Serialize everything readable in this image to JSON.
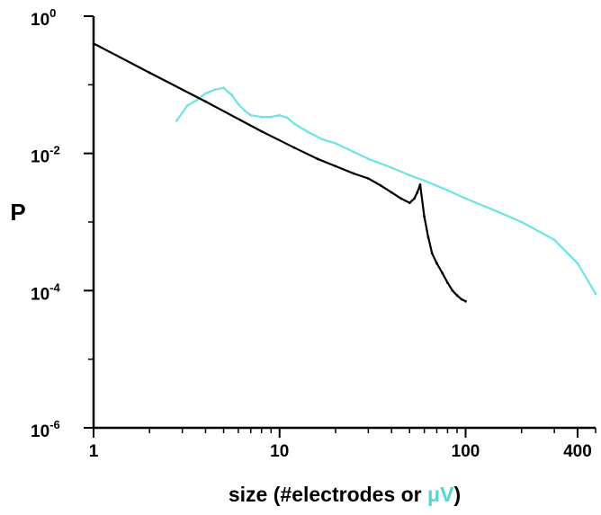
{
  "chart_data": {
    "type": "line",
    "title": "",
    "xlabel": {
      "prefix": "size (#electrodes or ",
      "mu": "μ",
      "unit": "V",
      "suffix": ")"
    },
    "ylabel": "P",
    "x_scale": "log",
    "y_scale": "log",
    "xlim": [
      1,
      500
    ],
    "ylim": [
      1e-06,
      1
    ],
    "x_ticks": [
      {
        "value": 1,
        "label": "1"
      },
      {
        "value": 10,
        "label": "10"
      },
      {
        "value": 100,
        "label": "100"
      },
      {
        "value": 400,
        "label": "400"
      }
    ],
    "y_ticks": [
      {
        "value": 1,
        "base": "10",
        "exp": "0"
      },
      {
        "value": 0.01,
        "base": "10",
        "exp": "-2"
      },
      {
        "value": 0.0001,
        "base": "10",
        "exp": "-4"
      },
      {
        "value": 1e-06,
        "base": "10",
        "exp": "-6"
      }
    ],
    "grid": false,
    "colors": {
      "black_series": "#000000",
      "cyan_series": "#6fe3e3",
      "mu_label": "#4fd6d6"
    },
    "series": [
      {
        "key": "electrodes",
        "color": "#000000",
        "x": [
          1,
          2,
          4,
          8,
          12,
          16,
          20,
          25,
          30,
          35,
          40,
          45,
          50,
          53,
          55,
          57,
          60,
          63,
          66,
          70,
          75,
          80,
          85,
          90,
          95,
          100
        ],
        "y": [
          0.4,
          0.15,
          0.057,
          0.021,
          0.0121,
          0.0083,
          0.0065,
          0.0051,
          0.0043,
          0.0034,
          0.0027,
          0.0022,
          0.0019,
          0.0022,
          0.0027,
          0.0035,
          0.0012,
          0.0006,
          0.00035,
          0.00025,
          0.00018,
          0.00013,
          0.0001,
          8.5e-05,
          7.5e-05,
          7e-05
        ]
      },
      {
        "key": "microvolts",
        "color": "#6fe3e3",
        "x": [
          2.8,
          3.2,
          3.6,
          4.0,
          4.5,
          5.0,
          5.5,
          6.0,
          6.5,
          7.0,
          8.0,
          9.0,
          10,
          11,
          12,
          14,
          17,
          20,
          25,
          30,
          40,
          50,
          60,
          80,
          100,
          150,
          200,
          300,
          400,
          500
        ],
        "y": [
          0.03,
          0.05,
          0.06,
          0.075,
          0.085,
          0.09,
          0.072,
          0.052,
          0.042,
          0.036,
          0.034,
          0.034,
          0.036,
          0.033,
          0.027,
          0.021,
          0.016,
          0.014,
          0.0105,
          0.0083,
          0.0062,
          0.0048,
          0.004,
          0.0029,
          0.0022,
          0.0014,
          0.001,
          0.00055,
          0.00025,
          9e-05
        ]
      }
    ]
  }
}
